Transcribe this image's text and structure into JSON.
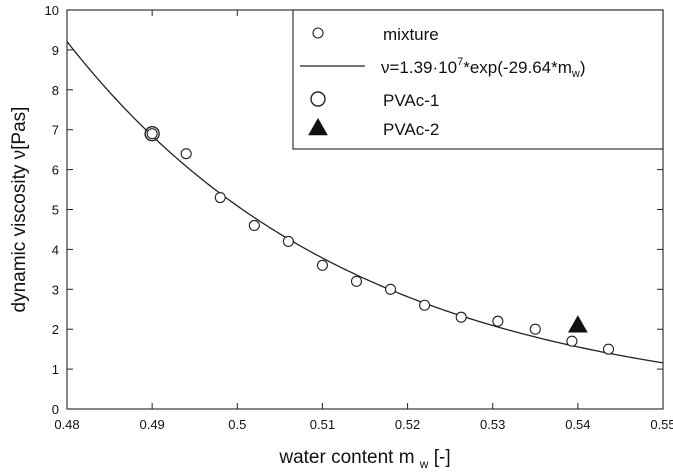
{
  "chart_data": {
    "type": "scatter",
    "title": "",
    "xlabel": "water content m",
    "xlabel_sub": "w",
    "xlabel_unit": " [-]",
    "ylabel": "dynamic viscosity ν[Pas]",
    "xlim": [
      0.48,
      0.55
    ],
    "ylim": [
      0,
      10
    ],
    "x_ticks": [
      0.48,
      0.49,
      0.5,
      0.51,
      0.52,
      0.53,
      0.54,
      0.55
    ],
    "x_tick_labels": [
      "0.48",
      "0.49",
      "0.5",
      "0.51",
      "0.52",
      "0.53",
      "0.54",
      "0.55"
    ],
    "y_ticks": [
      0,
      1,
      2,
      3,
      4,
      5,
      6,
      7,
      8,
      9,
      10
    ],
    "y_tick_labels": [
      "0",
      "1",
      "2",
      "3",
      "4",
      "5",
      "6",
      "7",
      "8",
      "9",
      "10"
    ],
    "grid": false,
    "legend_position": "top-right",
    "series": [
      {
        "name": "mixture",
        "marker": "open-circle-small",
        "x": [
          0.49,
          0.494,
          0.498,
          0.502,
          0.506,
          0.51,
          0.514,
          0.518,
          0.522,
          0.5263,
          0.5306,
          0.535,
          0.5393,
          0.5436
        ],
        "y": [
          6.9,
          6.4,
          5.3,
          4.6,
          4.2,
          3.6,
          3.2,
          3.0,
          2.6,
          2.3,
          2.2,
          2.0,
          1.7,
          1.5
        ]
      },
      {
        "name": "ν=1.39·10⁷*exp(-29.64*mᵥ)",
        "type": "line",
        "fit": {
          "a": 13900000,
          "b": -29.64
        }
      },
      {
        "name": "PVAc-1",
        "marker": "open-circle-large",
        "x": [
          0.49
        ],
        "y": [
          6.9
        ]
      },
      {
        "name": "PVAc-2",
        "marker": "filled-triangle",
        "x": [
          0.54
        ],
        "y": [
          2.1
        ]
      }
    ],
    "legend_items": [
      {
        "text": "mixture"
      },
      {
        "text": "ν=1.39·10",
        "sup": "7",
        "text_after": "*exp(-29.64*m",
        "sub": "w",
        "text_end": ")"
      },
      {
        "text": "PVAc-1"
      },
      {
        "text": "PVAc-2"
      }
    ]
  }
}
